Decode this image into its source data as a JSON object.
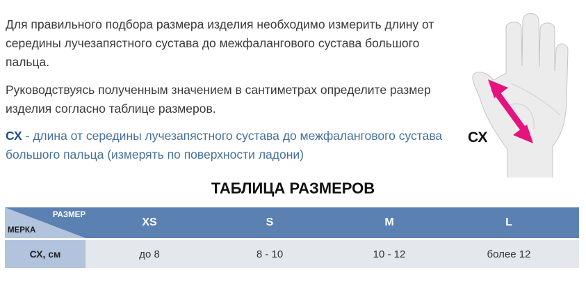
{
  "intro": {
    "paragraph1": "Для правильного подбора размера изделия необходимо измерить длину от середины лучезапястного сустава до межфалангового сустава большого пальца.",
    "paragraph2": "Руководствуясь полученным значением в сантиметрах определите размер изделия согласно таблице размеров.",
    "definition_term": "СХ",
    "definition_text": " - длина от середины лучезапястного сустава до межфалангового сустава большого пальца (измерять по поверхности ладони)"
  },
  "illustration": {
    "label": "СХ",
    "arrow_color": "#e5137f",
    "icon": "hand-icon"
  },
  "table": {
    "title": "ТАБЛИЦА РАЗМЕРОВ",
    "corner_top": "РАЗМЕР",
    "corner_bottom": "МЕРКА",
    "sizes": [
      "XS",
      "S",
      "M",
      "L"
    ],
    "row_label": "СХ, см",
    "values": [
      "до 8",
      "8 - 10",
      "10 - 12",
      "более 12"
    ],
    "header_color": "#5b80b2",
    "label_color": "#b1c3dd",
    "cell_color": "#e4e7eb"
  }
}
